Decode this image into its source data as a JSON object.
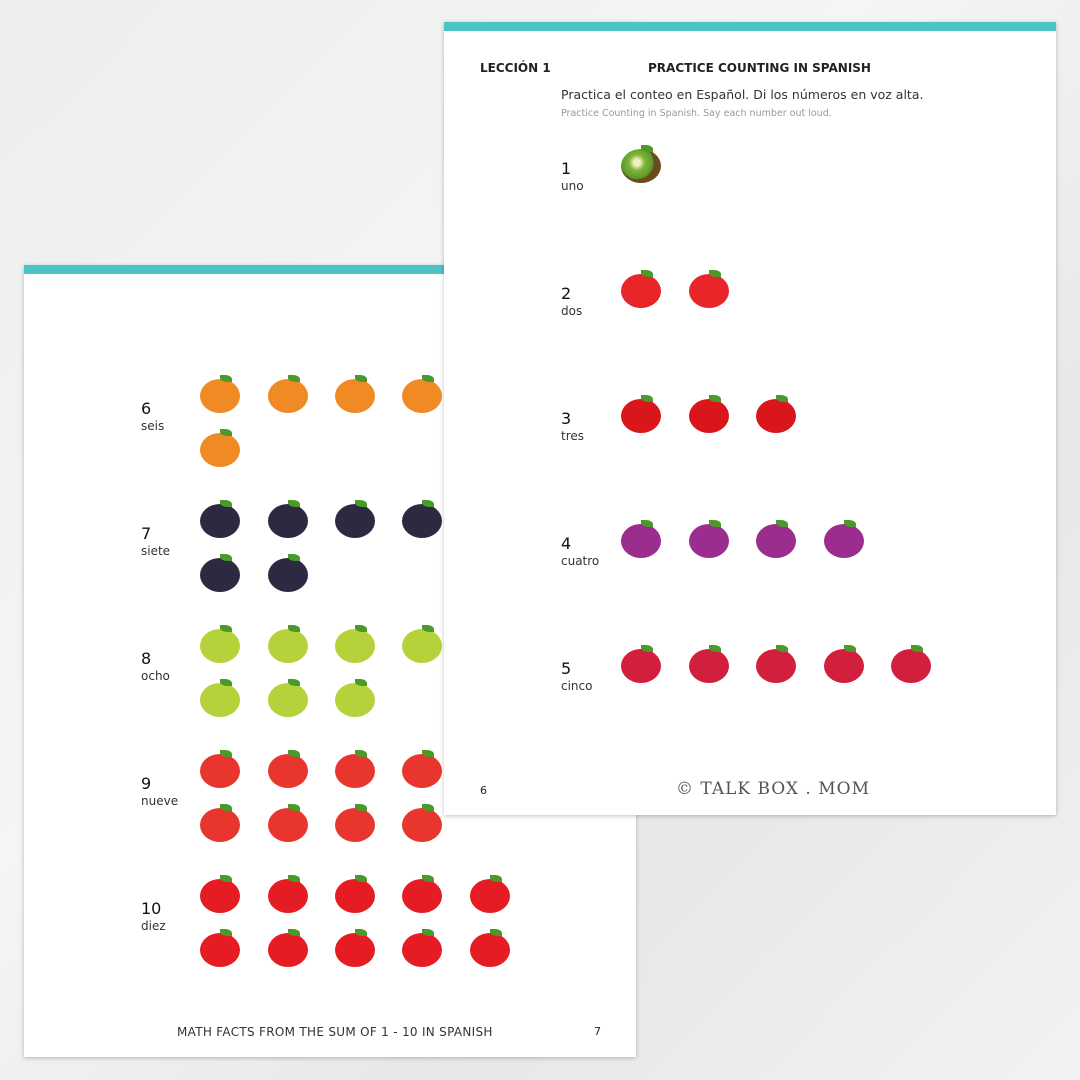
{
  "back_page": {
    "rows": [
      {
        "number": "6",
        "word": "seis",
        "fruit": "peach",
        "color": "#f08a24",
        "count": 6
      },
      {
        "number": "7",
        "word": "siete",
        "fruit": "blackberry",
        "color": "#2c2a40",
        "count": 7
      },
      {
        "number": "8",
        "word": "ocho",
        "fruit": "pear",
        "color": "#b6d23a",
        "count": 8
      },
      {
        "number": "9",
        "word": "nueve",
        "fruit": "strawberry",
        "color": "#e8362f",
        "count": 9
      },
      {
        "number": "10",
        "word": "diez",
        "fruit": "apple",
        "color": "#e51c24",
        "count": 10
      }
    ],
    "footer": "MATH FACTS FROM THE SUM OF 1 - 10 IN SPANISH",
    "page_number": "7"
  },
  "front_page": {
    "lesson": "LECCIÓN 1",
    "title": "PRACTICE COUNTING IN SPANISH",
    "instruction_es": "Practica el conteo en Español. Di los números en voz alta.",
    "instruction_en": "Practice Counting in Spanish. Say each number out loud.",
    "rows": [
      {
        "number": "1",
        "word": "uno",
        "fruit": "kiwi",
        "color": "#6b4a1e",
        "count": 1
      },
      {
        "number": "2",
        "word": "dos",
        "fruit": "tomato",
        "color": "#e8262a",
        "count": 2
      },
      {
        "number": "3",
        "word": "tres",
        "fruit": "red-pepper",
        "color": "#d9161c",
        "count": 3
      },
      {
        "number": "4",
        "word": "cuatro",
        "fruit": "plum",
        "color": "#9a2d8e",
        "count": 4
      },
      {
        "number": "5",
        "word": "cinco",
        "fruit": "raspberry",
        "color": "#d11f3d",
        "count": 5
      }
    ],
    "page_number": "6",
    "logo": "© TALK BOX . MOM"
  },
  "accent_color": "#4bc4c4"
}
